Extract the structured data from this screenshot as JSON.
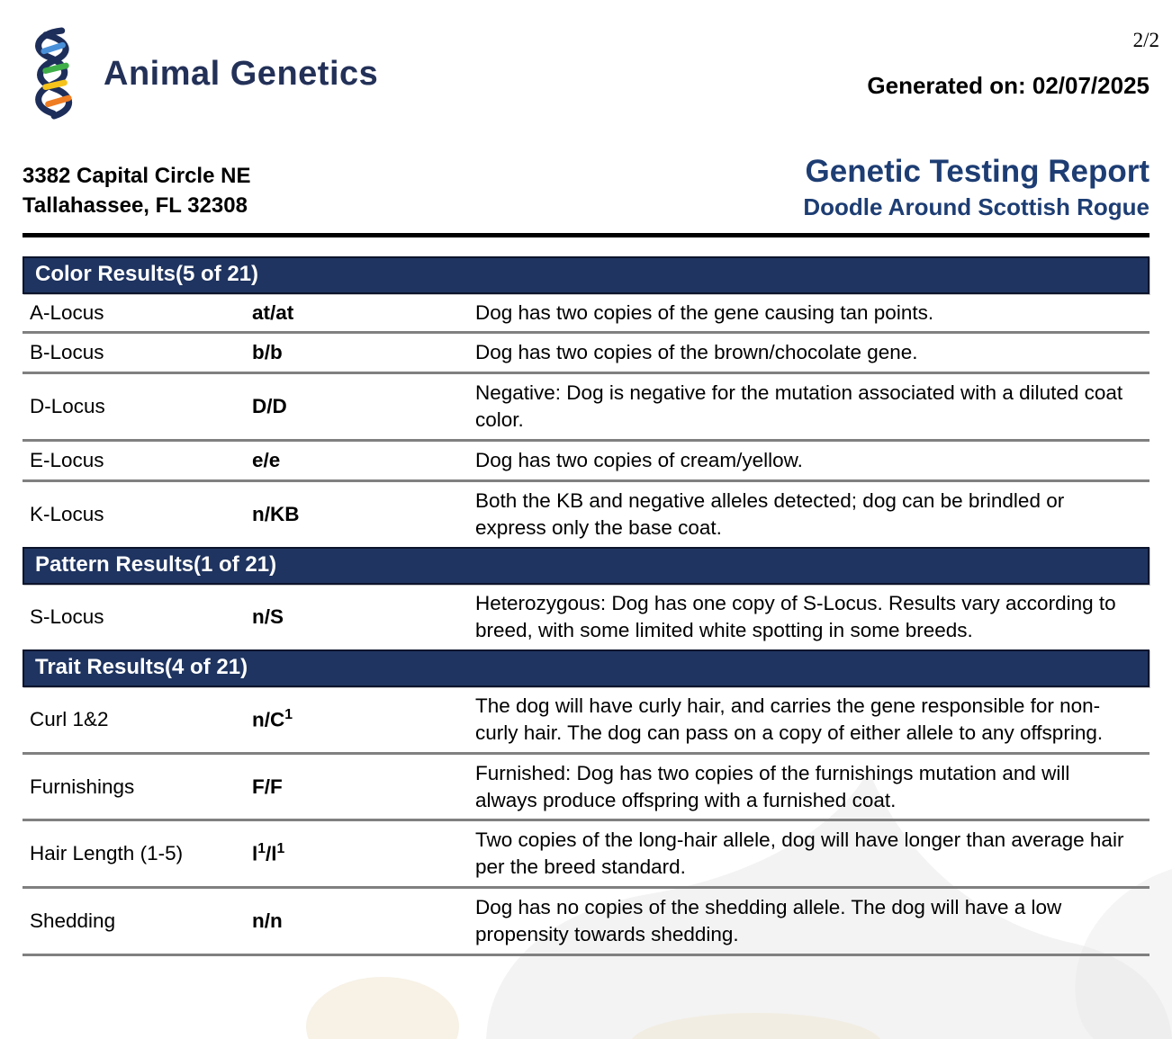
{
  "page_number": "2/2",
  "brand": {
    "name": "Animal Genetics"
  },
  "generated": "Generated on: 02/07/2025",
  "address": {
    "line1": "3382 Capital Circle NE",
    "line2": "Tallahassee, FL 32308"
  },
  "report": {
    "title": "Genetic Testing Report",
    "subject": "Doodle Around Scottish Rogue"
  },
  "sections": [
    {
      "title": "Color Results(5 of 21)",
      "rows": [
        {
          "locus": "A-Locus",
          "result": "at/at",
          "description": "Dog has two copies of the gene causing tan points."
        },
        {
          "locus": "B-Locus",
          "result": "b/b",
          "description": "Dog has two copies of the brown/chocolate gene."
        },
        {
          "locus": "D-Locus",
          "result": "D/D",
          "description": "Negative: Dog is negative for the mutation associated with a diluted coat color."
        },
        {
          "locus": "E-Locus",
          "result": "e/e",
          "description": "Dog has two copies of cream/yellow."
        },
        {
          "locus": "K-Locus",
          "result": "n/KB",
          "description": "Both the KB and negative alleles detected; dog can be brindled or express only the base coat."
        }
      ]
    },
    {
      "title": "Pattern Results(1 of 21)",
      "rows": [
        {
          "locus": "S-Locus",
          "result": "n/S",
          "description": "Heterozygous: Dog has one copy of S-Locus. Results vary according to breed, with some limited white spotting in some breeds."
        }
      ]
    },
    {
      "title": "Trait Results(4 of 21)",
      "rows": [
        {
          "locus": "Curl 1&2",
          "result": "n/C¹",
          "description": "The dog will have curly hair, and carries the gene responsible for non-curly hair. The dog can pass on a copy of either allele to any offspring."
        },
        {
          "locus": "Furnishings",
          "result": "F/F",
          "description": "Furnished: Dog has two copies of the furnishings mutation and will always produce offspring with a furnished coat."
        },
        {
          "locus": "Hair Length (1-5)",
          "result": "l¹/l¹",
          "description": "Two copies of the long-hair allele, dog will have longer than average hair per the breed standard."
        },
        {
          "locus": "Shedding",
          "result": "n/n",
          "description": "Dog has no copies of the shedding allele. The dog will have a low propensity towards shedding."
        }
      ]
    }
  ],
  "colors": {
    "section_bar": "#1f3460",
    "title_navy": "#1d3d73",
    "brand_navy": "#233158",
    "divider_gray": "#808080",
    "dna_strand": "#1e2e5a",
    "dna_blue": "#4a90d9",
    "dna_green": "#3fae49",
    "dna_yellow": "#f5c31b",
    "dna_orange": "#ef7d23"
  }
}
